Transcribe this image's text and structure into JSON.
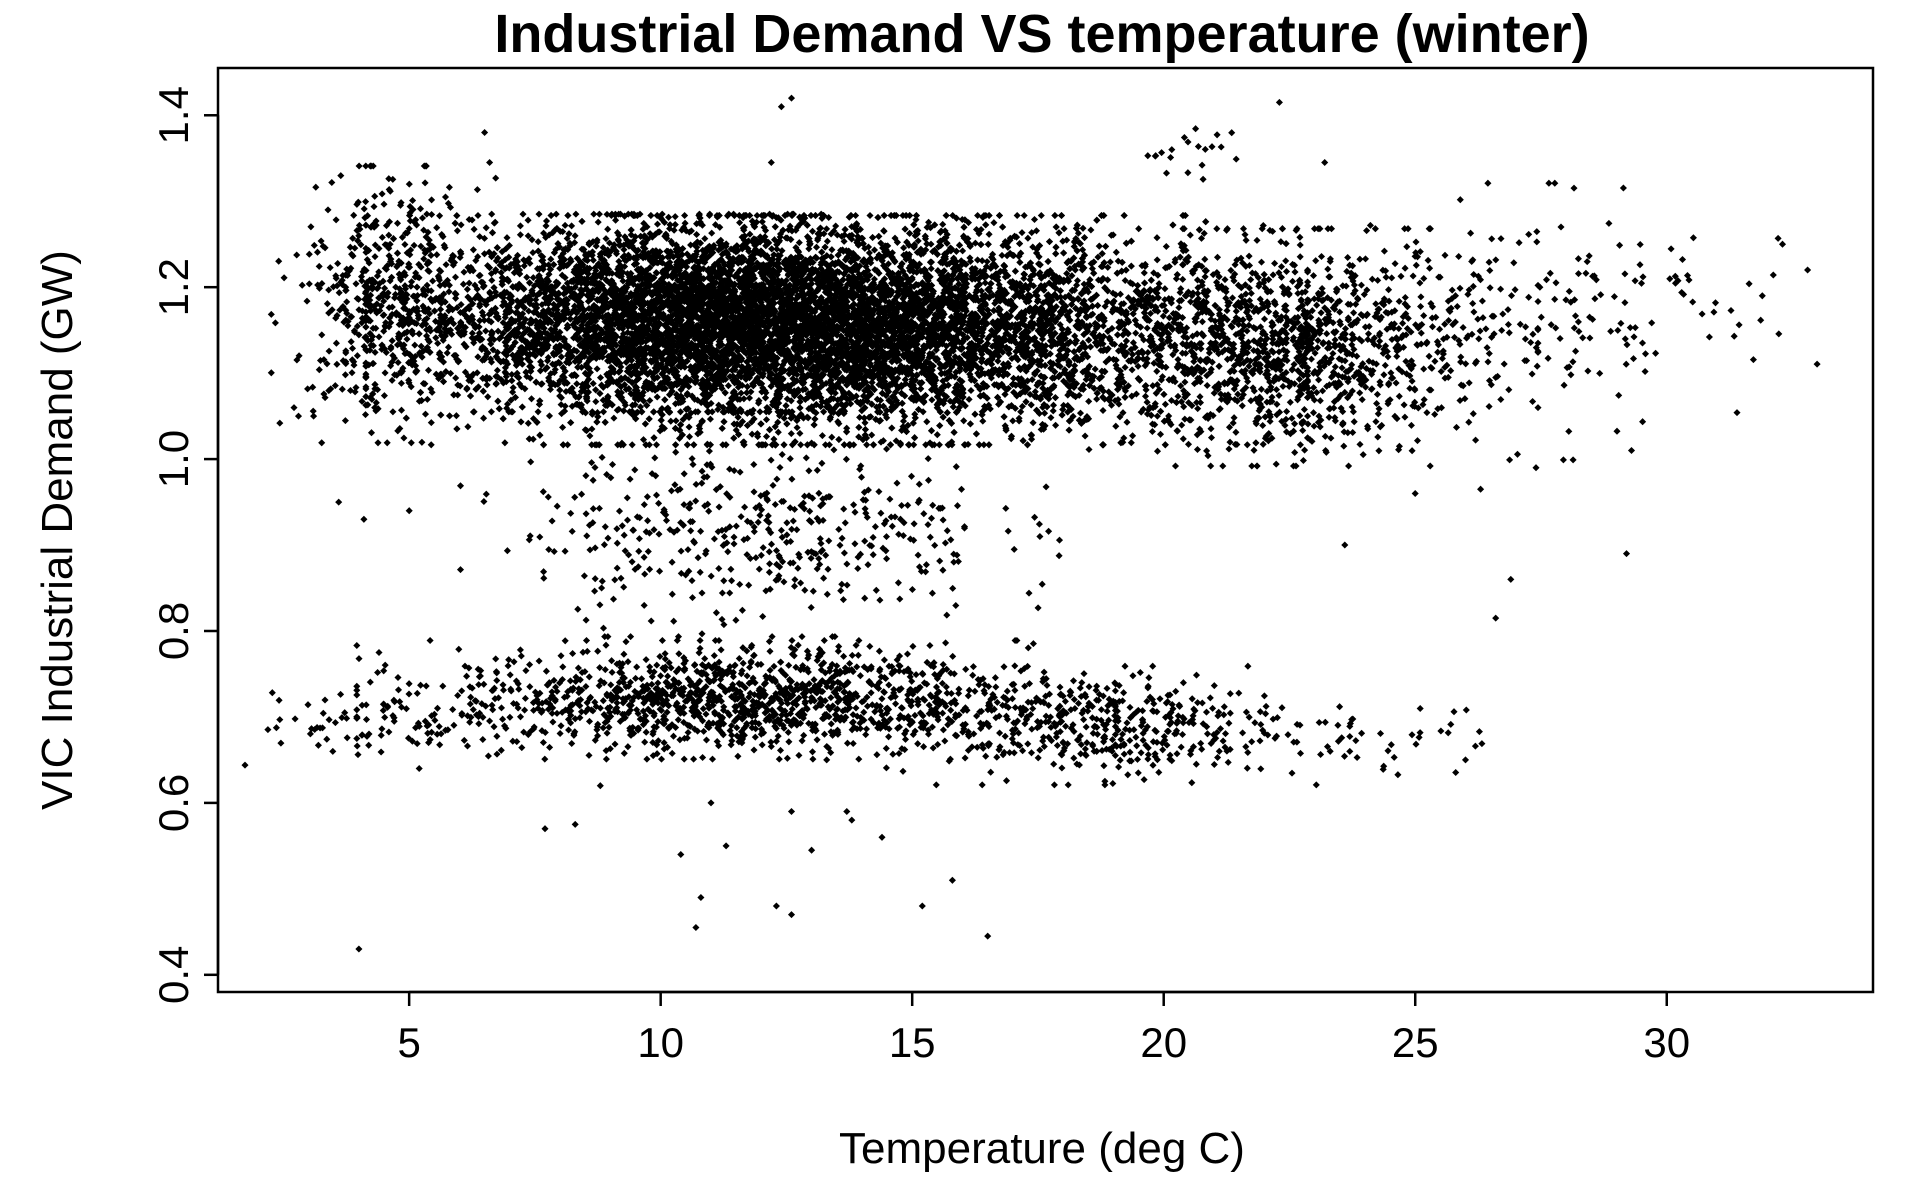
{
  "chart_data": {
    "type": "scatter",
    "title": "Industrial Demand VS temperature (winter)",
    "xlabel": "Temperature (deg C)",
    "ylabel": "VIC Industrial Demand (GW)",
    "xlim": [
      1.2,
      34.1
    ],
    "ylim": [
      0.38,
      1.455
    ],
    "xticks": [
      5,
      10,
      15,
      20,
      25,
      30
    ],
    "xtick_labels": [
      "5",
      "10",
      "15",
      "20",
      "25",
      "30"
    ],
    "yticks": [
      0.4,
      0.6,
      0.8,
      1.0,
      1.2,
      1.4
    ],
    "ytick_labels": [
      "0.4",
      "0.6",
      "0.8",
      "1.0",
      "1.2",
      "1.4"
    ],
    "grid": false,
    "legend": "none",
    "marker_color": "#000000",
    "series": [
      {
        "clusters": [
          {
            "cx": 13.5,
            "cy": 1.15,
            "sx": 3.6,
            "sy": 0.058,
            "n": 9000
          },
          {
            "cx": 10.5,
            "cy": 1.17,
            "sx": 2.6,
            "sy": 0.05,
            "n": 2600
          },
          {
            "cx": 22.5,
            "cy": 1.13,
            "sx": 1.9,
            "sy": 0.06,
            "n": 1200
          },
          {
            "cx": 11.5,
            "cy": 0.72,
            "sx": 2.9,
            "sy": 0.03,
            "n": 1300
          },
          {
            "cx": 18.5,
            "cy": 0.69,
            "sx": 2.0,
            "sy": 0.03,
            "n": 450
          },
          {
            "cx": 12.0,
            "cy": 0.92,
            "sx": 2.3,
            "sy": 0.055,
            "n": 450
          },
          {
            "cx": 4.6,
            "cy": 1.18,
            "sx": 0.9,
            "sy": 0.07,
            "n": 450
          },
          {
            "cx": 4.2,
            "cy": 0.69,
            "sx": 1.1,
            "sy": 0.02,
            "n": 70
          },
          {
            "cx": 27.5,
            "cy": 1.16,
            "sx": 1.5,
            "sy": 0.07,
            "n": 130
          },
          {
            "cx": 30.0,
            "cy": 1.18,
            "sx": 1.3,
            "sy": 0.06,
            "n": 35
          },
          {
            "cx": 24.5,
            "cy": 0.67,
            "sx": 1.0,
            "sy": 0.02,
            "n": 35
          },
          {
            "cx": 20.5,
            "cy": 1.36,
            "sx": 0.5,
            "sy": 0.015,
            "n": 20
          }
        ],
        "points": [
          [
            4.0,
            0.43
          ],
          [
            16.5,
            0.445
          ],
          [
            10.7,
            0.455
          ],
          [
            12.6,
            0.47
          ],
          [
            12.3,
            0.48
          ],
          [
            15.2,
            0.48
          ],
          [
            10.8,
            0.49
          ],
          [
            15.8,
            0.51
          ],
          [
            10.4,
            0.54
          ],
          [
            13.0,
            0.545
          ],
          [
            11.3,
            0.55
          ],
          [
            14.4,
            0.56
          ],
          [
            7.7,
            0.57
          ],
          [
            8.3,
            0.575
          ],
          [
            13.8,
            0.58
          ],
          [
            13.7,
            0.59
          ],
          [
            12.6,
            0.59
          ],
          [
            11.0,
            0.6
          ],
          [
            5.2,
            0.64
          ],
          [
            26.0,
            0.65
          ],
          [
            8.8,
            0.62
          ],
          [
            12.6,
            1.42
          ],
          [
            22.3,
            1.415
          ],
          [
            12.4,
            1.41
          ],
          [
            6.5,
            1.38
          ],
          [
            12.2,
            1.345
          ],
          [
            23.2,
            1.345
          ],
          [
            6.6,
            1.345
          ],
          [
            32.3,
            1.25
          ],
          [
            32.8,
            1.22
          ],
          [
            31.9,
            1.19
          ],
          [
            29.2,
            0.89
          ],
          [
            29.3,
            1.01
          ],
          [
            26.6,
            0.815
          ],
          [
            26.9,
            0.86
          ],
          [
            26.3,
            0.965
          ],
          [
            25.0,
            0.96
          ],
          [
            27.4,
            0.99
          ],
          [
            23.6,
            0.9
          ],
          [
            3.6,
            0.95
          ],
          [
            4.1,
            0.93
          ],
          [
            5.0,
            0.94
          ],
          [
            2.8,
            1.05
          ],
          [
            3.1,
            1.05
          ]
        ]
      }
    ]
  }
}
